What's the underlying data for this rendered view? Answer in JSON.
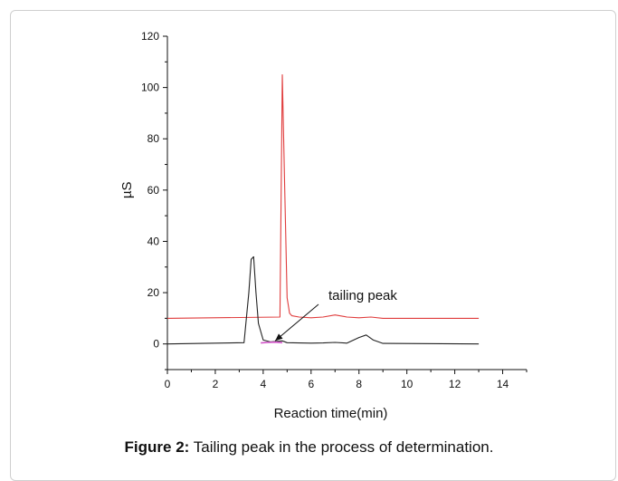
{
  "caption": {
    "label": "Figure 2:",
    "text": " Tailing peak in the process of determination."
  },
  "chart_data": {
    "type": "line",
    "xlabel": "Reaction time(min)",
    "ylabel": "µS",
    "xlim": [
      0,
      15
    ],
    "ylim": [
      -10,
      120
    ],
    "xticks": [
      0,
      2,
      4,
      6,
      8,
      10,
      12,
      14
    ],
    "yticks": [
      0,
      20,
      40,
      60,
      80,
      100,
      120
    ],
    "grid": false,
    "annotation": {
      "text": "tailing peak",
      "arrow_to": [
        4.5,
        0.5
      ]
    },
    "series": [
      {
        "color": "#e03c3c",
        "x": [
          0,
          4.7,
          4.8,
          4.9,
          5.0,
          5.1,
          5.2,
          5.5,
          6.0,
          6.5,
          7.0,
          7.5,
          8.0,
          8.5,
          9.0,
          10.0,
          13.0
        ],
        "y": [
          10,
          10.5,
          105,
          60,
          18,
          12,
          11,
          10.5,
          10.2,
          10.5,
          11.3,
          10.5,
          10.2,
          10.5,
          10.0,
          10.0,
          10.0
        ]
      },
      {
        "color": "#222222",
        "x": [
          0,
          3.2,
          3.4,
          3.5,
          3.6,
          3.7,
          3.8,
          4.0,
          4.3,
          4.8,
          5.0,
          6.0,
          6.5,
          7.0,
          7.5,
          8.0,
          8.3,
          8.6,
          9.0,
          13.0
        ],
        "y": [
          0,
          0.5,
          20,
          33,
          34,
          20,
          8,
          1.5,
          0.8,
          1.2,
          0.5,
          0.3,
          0.4,
          0.6,
          0.3,
          2.5,
          3.5,
          1.5,
          0.2,
          0.0
        ]
      },
      {
        "color": "#d050c8",
        "x": [
          3.9,
          4.2,
          4.5,
          4.8
        ],
        "y": [
          0.4,
          0.6,
          0.7,
          0.5
        ]
      }
    ]
  }
}
